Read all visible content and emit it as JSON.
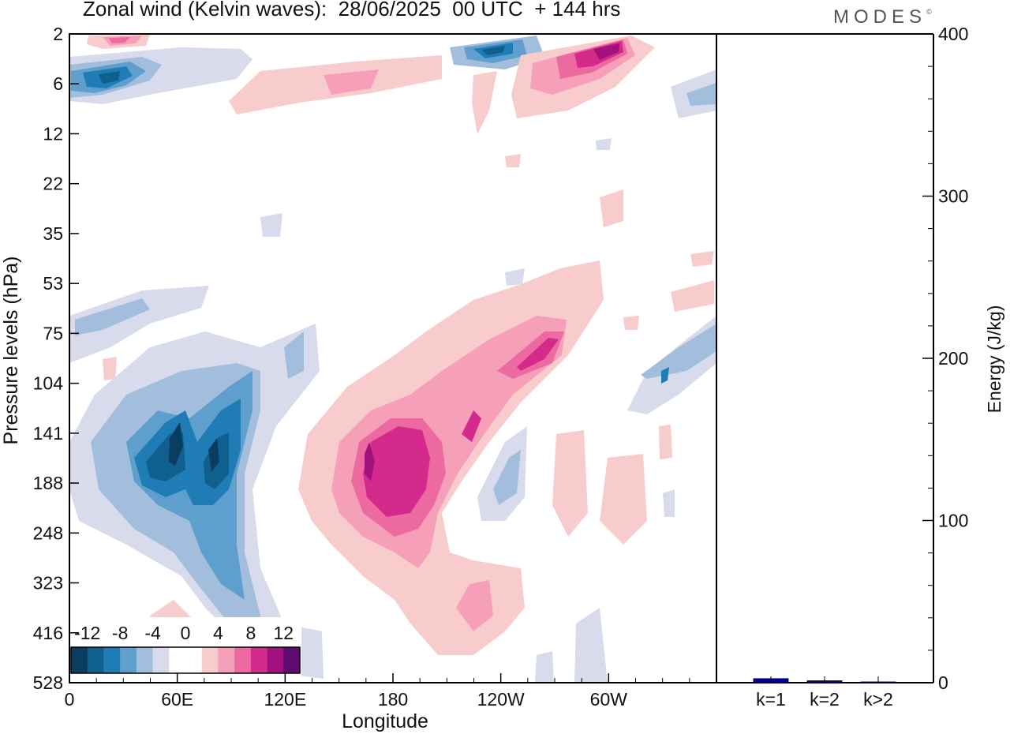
{
  "header": {
    "title": "Zonal wind (Kelvin waves):  28/06/2025  00 UTC  + 144 hrs",
    "brand": "MODES",
    "brand_mark": "©"
  },
  "chart_data": [
    {
      "type": "heatmap",
      "title": "Zonal wind (Kelvin waves):  28/06/2025  00 UTC  + 144 hrs",
      "xlabel": "Longitude",
      "ylabel": "Pressure levels (hPa)",
      "x_ticks": [
        "0",
        "60E",
        "120E",
        "180",
        "120W",
        "60W"
      ],
      "x_tick_degrees": [
        0,
        60,
        120,
        180,
        240,
        300
      ],
      "xlim": [
        0,
        360
      ],
      "y_ticks": [
        "2",
        "6",
        "12",
        "22",
        "35",
        "53",
        "75",
        "104",
        "141",
        "188",
        "248",
        "323",
        "416",
        "528"
      ],
      "colorbar": {
        "labels": [
          "-12",
          "-8",
          "-4",
          "0",
          "4",
          "8",
          "12"
        ],
        "colors": [
          "#0a3d5f",
          "#0f5f8f",
          "#1f7cb5",
          "#5f9fcd",
          "#a3bedc",
          "#d7dbeb",
          "#ffffff",
          "#ffffff",
          "#f8cccc",
          "#f5a0b8",
          "#ec6aa0",
          "#d42a8c",
          "#a1127e",
          "#5e0a6e"
        ]
      },
      "regions": [
        {
          "sign": "negative",
          "lon": [
            0,
            40
          ],
          "level_hpa": [
            4,
            9
          ],
          "peak": -11
        },
        {
          "sign": "negative",
          "lon": [
            105,
            120
          ],
          "level_hpa": [
            2,
            4
          ],
          "peak": -10
        },
        {
          "sign": "positive",
          "lon": [
            225,
            255
          ],
          "level_hpa": [
            2,
            6
          ],
          "peak": 10
        },
        {
          "sign": "negative",
          "lon": [
            15,
            105
          ],
          "level_hpa": [
            100,
            520
          ],
          "peak": -12
        },
        {
          "sign": "positive",
          "lon": [
            130,
            245
          ],
          "level_hpa": [
            75,
            450
          ],
          "peak": 10
        },
        {
          "sign": "negative",
          "lon": [
            310,
            360
          ],
          "level_hpa": [
            75,
            120
          ],
          "peak": -6
        }
      ]
    },
    {
      "type": "bar",
      "categories": [
        "k=1",
        "k=2",
        "k>2"
      ],
      "values": [
        2.5,
        1.2,
        0.5
      ],
      "ylabel": "Energy (J/kg)",
      "ylim": [
        0,
        400
      ],
      "y_ticks": [
        "0",
        "100",
        "200",
        "300",
        "400"
      ],
      "color": "#0000aa"
    }
  ]
}
